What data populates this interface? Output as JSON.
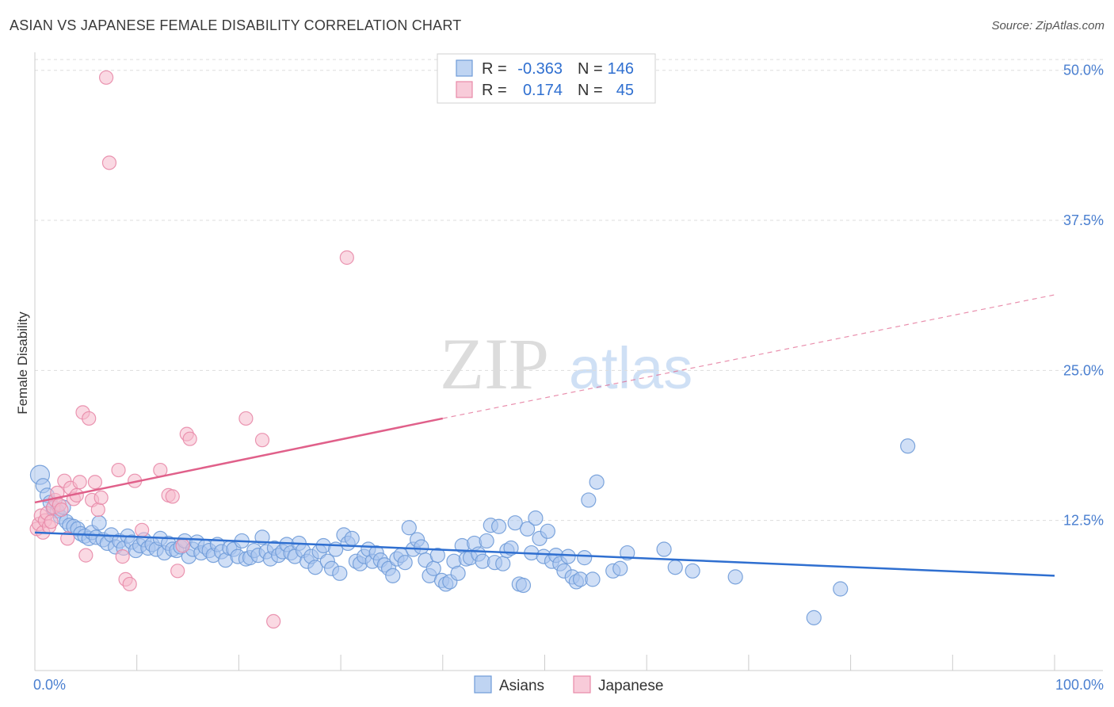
{
  "title": "ASIAN VS JAPANESE FEMALE DISABILITY CORRELATION CHART",
  "source": "Source: ZipAtlas.com",
  "watermark": {
    "zip": "ZIP",
    "atlas": "atlas"
  },
  "legend": {
    "r_label": "R =",
    "n_label": "N =",
    "asians": {
      "r": "-0.363",
      "n": "146"
    },
    "japanese": {
      "r": "0.174",
      "n": "45"
    }
  },
  "colors": {
    "asians_fill": "#a9c5ee",
    "asians_stroke": "#6f9bd8",
    "asians_line": "#2f6fd0",
    "japanese_fill": "#f5b9cc",
    "japanese_stroke": "#e88aa8",
    "japanese_line": "#e0608a"
  },
  "chart_data": {
    "type": "scatter",
    "title": "ASIAN VS JAPANESE FEMALE DISABILITY CORRELATION CHART",
    "xlabel": "",
    "ylabel": "Female Disability",
    "xlim": [
      0,
      100
    ],
    "ylim": [
      0,
      51.5
    ],
    "y_ticks": [
      12.5,
      25.0,
      37.5,
      50.0
    ],
    "y_tick_labels": [
      "12.5%",
      "25.0%",
      "37.5%",
      "50.0%"
    ],
    "x_tick_labels": [
      "0.0%",
      "100.0%"
    ],
    "grid": true,
    "legend_placement": "top-center",
    "series": [
      {
        "name": "Asians",
        "r": -0.363,
        "n": 146,
        "trend": {
          "x0": 0,
          "y0": 11.5,
          "x1": 100,
          "y1": 7.9
        },
        "points": [
          [
            0.5,
            16.3
          ],
          [
            0.8,
            15.4
          ],
          [
            1.2,
            14.6
          ],
          [
            1.5,
            14.0
          ],
          [
            1.8,
            13.5
          ],
          [
            2.2,
            13.3
          ],
          [
            2.5,
            12.8
          ],
          [
            2.8,
            13.6
          ],
          [
            3.1,
            12.4
          ],
          [
            3.4,
            12.1
          ],
          [
            3.8,
            12.0
          ],
          [
            4.2,
            11.8
          ],
          [
            4.5,
            11.4
          ],
          [
            4.9,
            11.2
          ],
          [
            5.3,
            11.0
          ],
          [
            5.6,
            11.5
          ],
          [
            6.0,
            11.1
          ],
          [
            6.3,
            12.3
          ],
          [
            6.7,
            10.9
          ],
          [
            7.1,
            10.6
          ],
          [
            7.5,
            11.3
          ],
          [
            7.9,
            10.3
          ],
          [
            8.3,
            10.8
          ],
          [
            8.7,
            10.2
          ],
          [
            9.1,
            11.2
          ],
          [
            9.5,
            10.7
          ],
          [
            9.9,
            10.0
          ],
          [
            10.3,
            10.4
          ],
          [
            10.7,
            10.9
          ],
          [
            11.1,
            10.2
          ],
          [
            11.5,
            10.5
          ],
          [
            11.9,
            10.1
          ],
          [
            12.3,
            11.0
          ],
          [
            12.7,
            9.8
          ],
          [
            13.1,
            10.6
          ],
          [
            13.5,
            10.1
          ],
          [
            13.9,
            10.0
          ],
          [
            14.3,
            10.3
          ],
          [
            14.7,
            10.8
          ],
          [
            15.1,
            9.5
          ],
          [
            15.5,
            10.1
          ],
          [
            15.9,
            10.7
          ],
          [
            16.3,
            9.8
          ],
          [
            16.7,
            10.3
          ],
          [
            17.1,
            10.0
          ],
          [
            17.5,
            9.6
          ],
          [
            17.9,
            10.5
          ],
          [
            18.3,
            9.9
          ],
          [
            18.7,
            9.2
          ],
          [
            19.1,
            10.2
          ],
          [
            19.5,
            10.1
          ],
          [
            19.9,
            9.5
          ],
          [
            20.3,
            10.8
          ],
          [
            20.7,
            9.3
          ],
          [
            21.1,
            9.4
          ],
          [
            21.5,
            10.0
          ],
          [
            21.9,
            9.6
          ],
          [
            22.3,
            11.1
          ],
          [
            22.7,
            9.9
          ],
          [
            23.1,
            9.3
          ],
          [
            23.5,
            10.2
          ],
          [
            23.9,
            9.6
          ],
          [
            24.3,
            9.9
          ],
          [
            24.7,
            10.5
          ],
          [
            25.1,
            9.8
          ],
          [
            25.5,
            9.5
          ],
          [
            25.9,
            10.6
          ],
          [
            26.3,
            10.0
          ],
          [
            26.7,
            9.1
          ],
          [
            27.1,
            9.5
          ],
          [
            27.5,
            8.6
          ],
          [
            27.9,
            9.9
          ],
          [
            28.3,
            10.4
          ],
          [
            28.7,
            9.1
          ],
          [
            29.1,
            8.5
          ],
          [
            29.5,
            10.1
          ],
          [
            29.9,
            8.1
          ],
          [
            30.3,
            11.3
          ],
          [
            30.7,
            10.6
          ],
          [
            31.1,
            11.0
          ],
          [
            31.5,
            9.1
          ],
          [
            31.9,
            8.9
          ],
          [
            32.3,
            9.5
          ],
          [
            32.7,
            10.1
          ],
          [
            33.1,
            9.1
          ],
          [
            33.5,
            9.8
          ],
          [
            33.9,
            9.2
          ],
          [
            34.3,
            8.8
          ],
          [
            34.7,
            8.5
          ],
          [
            35.1,
            7.9
          ],
          [
            35.5,
            9.3
          ],
          [
            35.9,
            9.6
          ],
          [
            36.3,
            9.0
          ],
          [
            36.7,
            11.9
          ],
          [
            37.1,
            10.1
          ],
          [
            37.5,
            10.9
          ],
          [
            37.9,
            10.3
          ],
          [
            38.3,
            9.2
          ],
          [
            38.7,
            7.9
          ],
          [
            39.1,
            8.5
          ],
          [
            39.5,
            9.6
          ],
          [
            39.9,
            7.5
          ],
          [
            40.3,
            7.2
          ],
          [
            40.7,
            7.4
          ],
          [
            41.1,
            9.1
          ],
          [
            41.5,
            8.1
          ],
          [
            41.9,
            10.4
          ],
          [
            42.3,
            9.3
          ],
          [
            42.7,
            9.4
          ],
          [
            43.1,
            10.6
          ],
          [
            43.5,
            9.7
          ],
          [
            43.9,
            9.1
          ],
          [
            44.3,
            10.8
          ],
          [
            44.7,
            12.1
          ],
          [
            45.1,
            9.0
          ],
          [
            45.5,
            12.0
          ],
          [
            45.9,
            8.9
          ],
          [
            46.3,
            10.0
          ],
          [
            46.7,
            10.2
          ],
          [
            47.1,
            12.3
          ],
          [
            47.5,
            7.2
          ],
          [
            47.9,
            7.1
          ],
          [
            48.3,
            11.8
          ],
          [
            48.7,
            9.8
          ],
          [
            49.1,
            12.7
          ],
          [
            49.5,
            11.0
          ],
          [
            49.9,
            9.5
          ],
          [
            50.3,
            11.6
          ],
          [
            50.7,
            9.1
          ],
          [
            51.1,
            9.6
          ],
          [
            51.5,
            8.9
          ],
          [
            51.9,
            8.3
          ],
          [
            52.3,
            9.5
          ],
          [
            52.7,
            7.8
          ],
          [
            53.1,
            7.4
          ],
          [
            53.5,
            7.6
          ],
          [
            53.9,
            9.4
          ],
          [
            54.3,
            14.2
          ],
          [
            54.7,
            7.6
          ],
          [
            55.1,
            15.7
          ],
          [
            56.7,
            8.3
          ],
          [
            57.4,
            8.5
          ],
          [
            58.1,
            9.8
          ],
          [
            61.7,
            10.1
          ],
          [
            62.8,
            8.6
          ],
          [
            64.5,
            8.3
          ],
          [
            68.7,
            7.8
          ],
          [
            76.4,
            4.4
          ],
          [
            79.0,
            6.8
          ],
          [
            85.6,
            18.7
          ]
        ]
      },
      {
        "name": "Japanese",
        "r": 0.174,
        "n": 45,
        "trend": {
          "x0": 0,
          "y0": 14.0,
          "x1": 40,
          "y1": 21.0,
          "dash_x1": 100,
          "dash_y1": 31.3
        },
        "points": [
          [
            0.2,
            11.8
          ],
          [
            0.4,
            12.2
          ],
          [
            0.6,
            12.9
          ],
          [
            0.8,
            11.5
          ],
          [
            1.0,
            12.5
          ],
          [
            1.2,
            13.1
          ],
          [
            1.4,
            12.0
          ],
          [
            1.6,
            12.4
          ],
          [
            1.8,
            13.6
          ],
          [
            2.0,
            14.2
          ],
          [
            2.2,
            14.8
          ],
          [
            2.4,
            13.8
          ],
          [
            2.6,
            13.4
          ],
          [
            2.9,
            15.8
          ],
          [
            3.2,
            11.0
          ],
          [
            3.5,
            15.2
          ],
          [
            3.8,
            14.3
          ],
          [
            4.1,
            14.6
          ],
          [
            4.4,
            15.7
          ],
          [
            4.7,
            21.5
          ],
          [
            5.0,
            9.6
          ],
          [
            5.3,
            21.0
          ],
          [
            5.6,
            14.2
          ],
          [
            5.9,
            15.7
          ],
          [
            6.2,
            13.4
          ],
          [
            6.5,
            14.4
          ],
          [
            7.0,
            49.4
          ],
          [
            7.3,
            42.3
          ],
          [
            8.2,
            16.7
          ],
          [
            8.6,
            9.5
          ],
          [
            8.9,
            7.6
          ],
          [
            9.3,
            7.2
          ],
          [
            9.8,
            15.8
          ],
          [
            10.5,
            11.7
          ],
          [
            12.3,
            16.7
          ],
          [
            13.1,
            14.6
          ],
          [
            13.5,
            14.5
          ],
          [
            14.0,
            8.3
          ],
          [
            14.5,
            10.4
          ],
          [
            14.9,
            19.7
          ],
          [
            15.2,
            19.3
          ],
          [
            20.7,
            21.0
          ],
          [
            22.3,
            19.2
          ],
          [
            23.4,
            4.1
          ],
          [
            30.6,
            34.4
          ]
        ]
      }
    ]
  },
  "bottom_legend": {
    "asians": "Asians",
    "japanese": "Japanese"
  }
}
